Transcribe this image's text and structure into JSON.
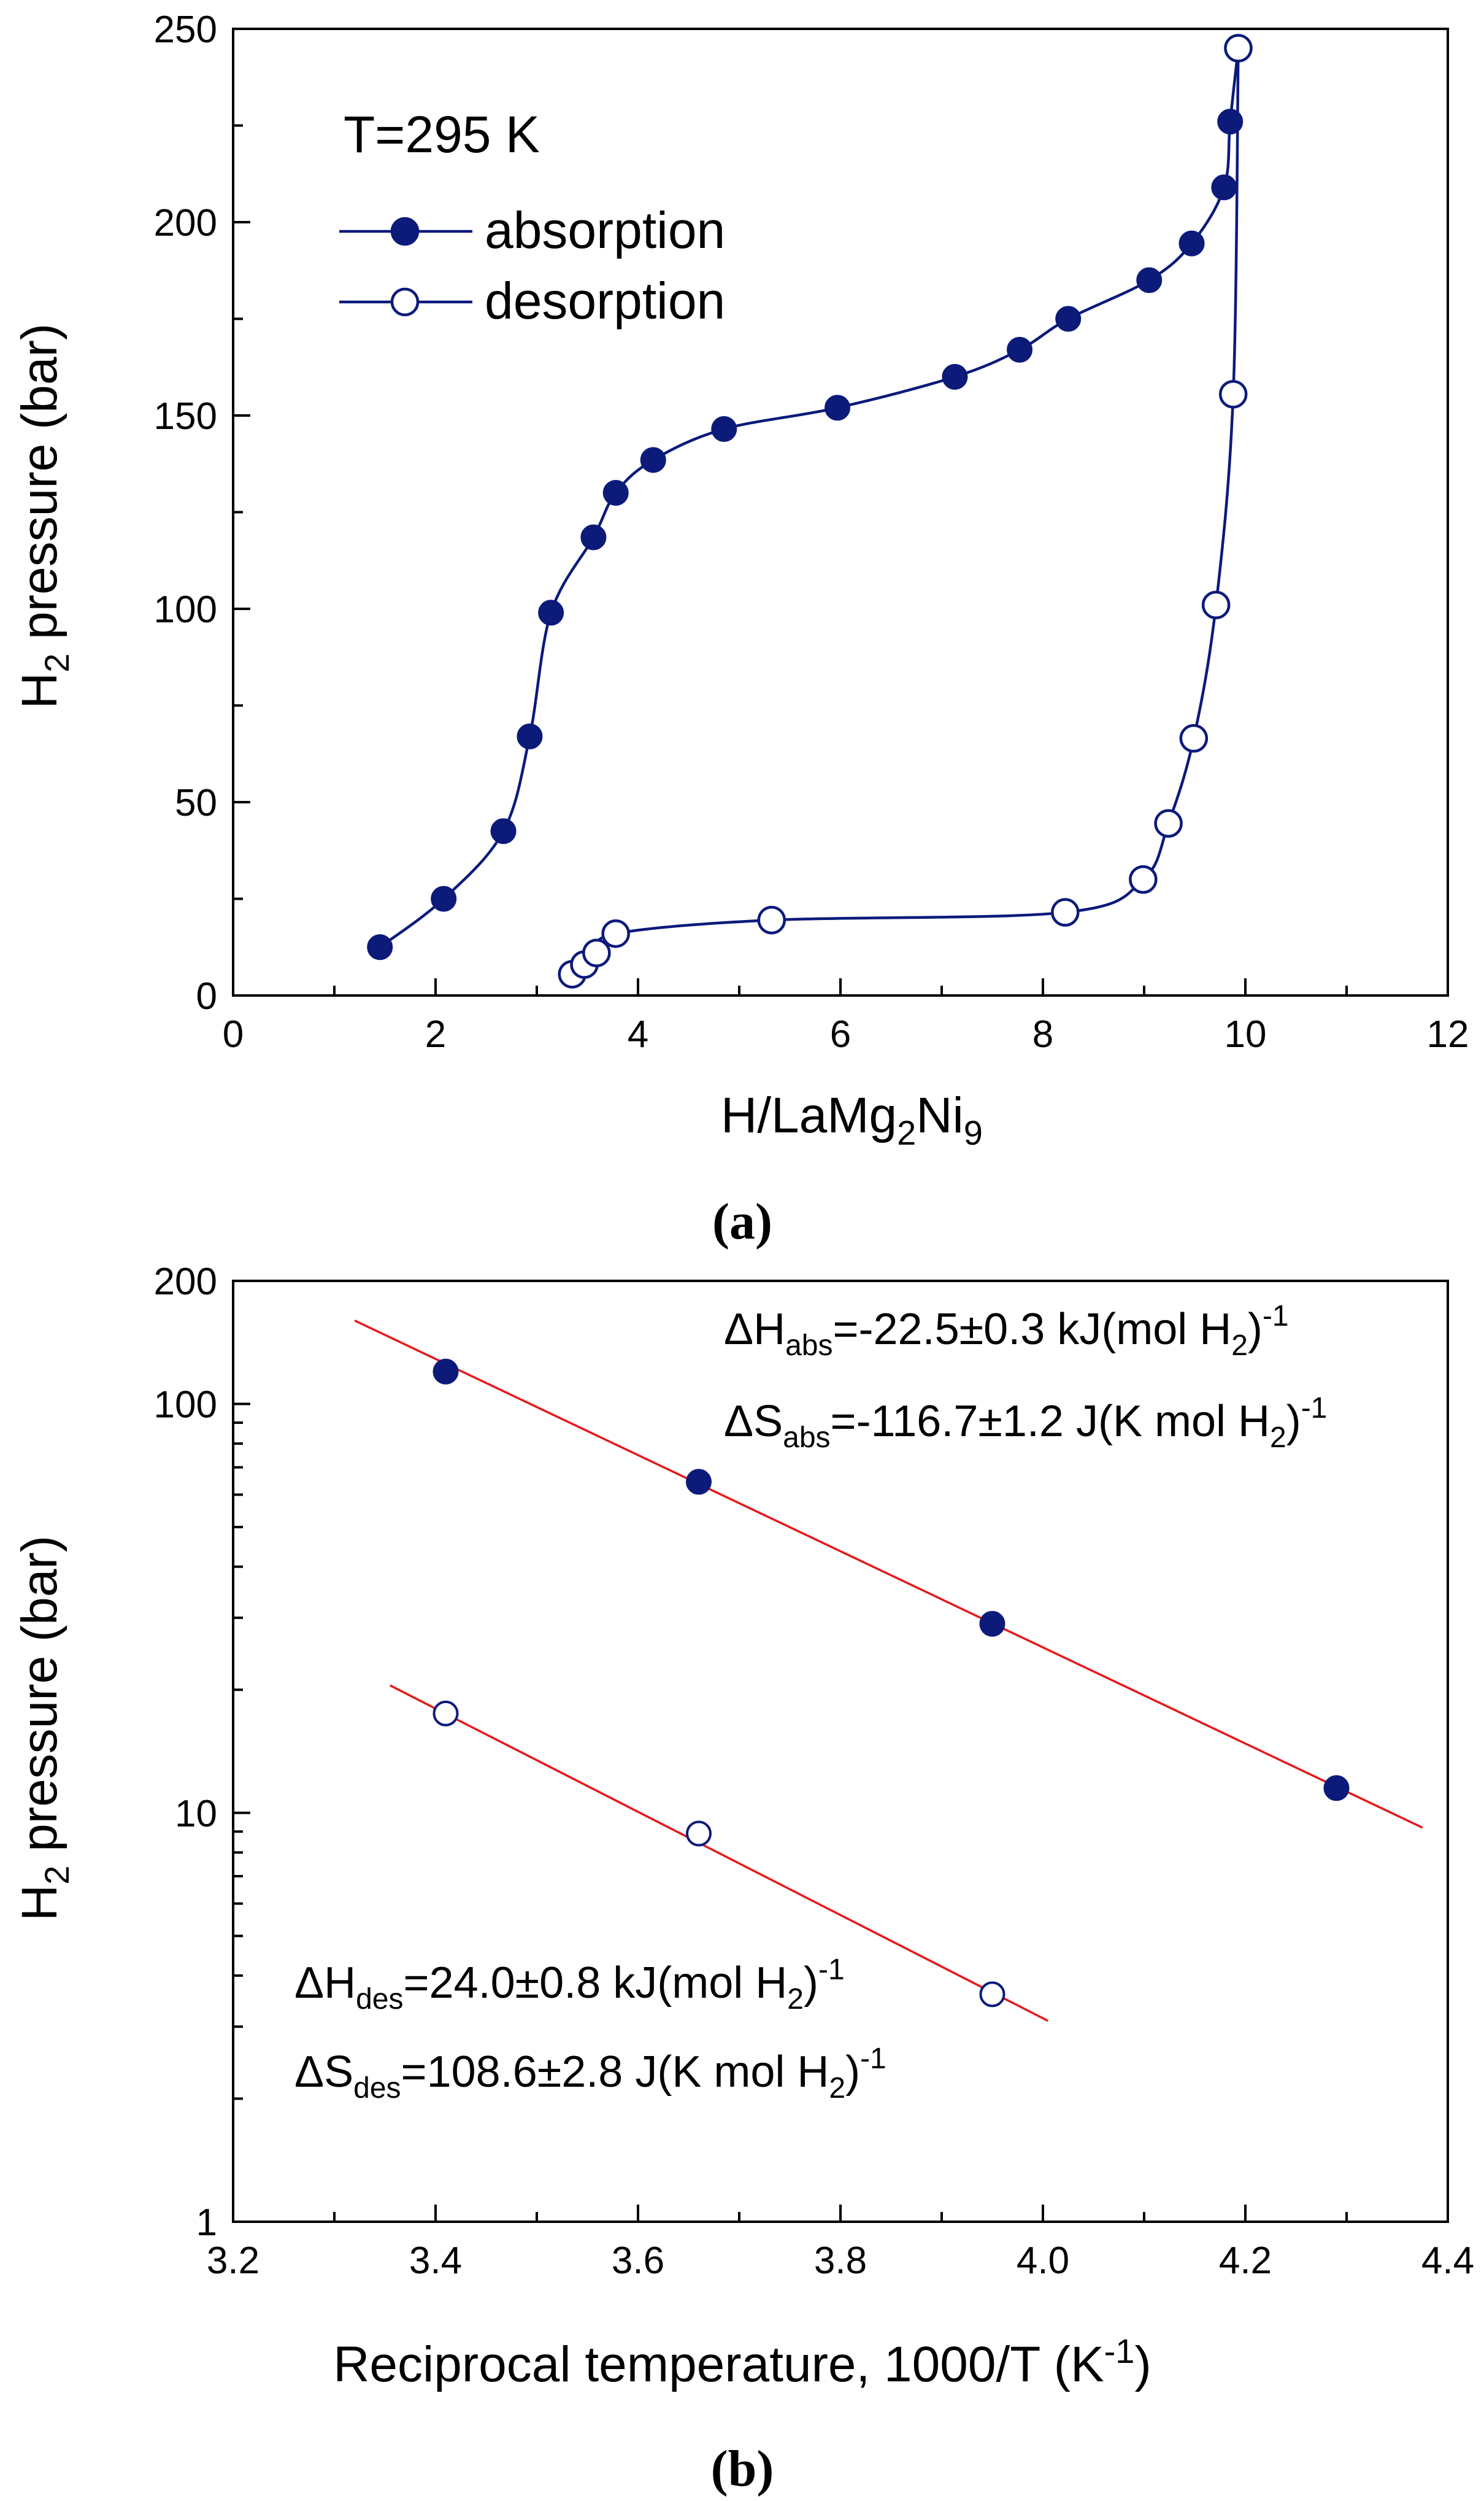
{
  "chart_data": [
    {
      "type": "line",
      "panel_label": "(a)",
      "annotation": "T=295 K",
      "xlabel": "H/LaMg2Ni9",
      "xlabel_parts": [
        "H/LaMg",
        "2",
        "Ni",
        "9"
      ],
      "ylabel": "H2 pressure (bar)",
      "ylabel_parts": [
        "H",
        "2",
        " pressure (bar)"
      ],
      "xlim": [
        0,
        12
      ],
      "ylim": [
        0,
        250
      ],
      "xticks": [
        0,
        2,
        4,
        6,
        8,
        10,
        12
      ],
      "yticks": [
        0,
        50,
        100,
        150,
        200,
        250
      ],
      "legend_position": "top-left",
      "series": [
        {
          "name": "absorption",
          "marker": "filled-circle",
          "color": "#0c1a7a",
          "x": [
            1.45,
            2.08,
            2.67,
            2.93,
            3.14,
            3.56,
            3.78,
            4.15,
            4.85,
            5.97,
            7.13,
            7.77,
            8.25,
            9.05,
            9.47,
            9.79,
            9.85,
            9.93
          ],
          "y": [
            12.5,
            25,
            42.5,
            67,
            99,
            118.5,
            130,
            138.5,
            146.5,
            152,
            160,
            167,
            175,
            185,
            194.5,
            209,
            226,
            245
          ]
        },
        {
          "name": "desorption",
          "marker": "open-circle",
          "color": "#0c1a7a",
          "x": [
            3.35,
            3.47,
            3.59,
            3.78,
            5.32,
            8.22,
            8.99,
            9.24,
            9.49,
            9.71,
            9.88,
            9.93
          ],
          "y": [
            5.5,
            8,
            11,
            16,
            19.5,
            21.5,
            30,
            44.5,
            66.5,
            101,
            155.5,
            245
          ]
        }
      ]
    },
    {
      "type": "scatter",
      "panel_label": "(b)",
      "xlabel": "Reciprocal temperature, 1000/T (K-1)",
      "xlabel_main": "Reciprocal temperature, 1000/T (K",
      "xlabel_sup": "-1",
      "xlabel_close": ")",
      "ylabel": "H2 pressure (bar)",
      "ylabel_parts": [
        "H",
        "2",
        " pressure (bar)"
      ],
      "xlim": [
        3.2,
        4.4
      ],
      "ylim": [
        1,
        200
      ],
      "yscale": "log",
      "xticks": [
        "3.2",
        "3.4",
        "3.6",
        "3.8",
        "4.0",
        "4.2",
        "4.4"
      ],
      "yticks": [
        1,
        10,
        100,
        200
      ],
      "series": [
        {
          "name": "absorption",
          "marker": "filled-circle",
          "x": [
            3.41,
            3.66,
            3.95,
            4.29
          ],
          "y": [
            120,
            64.5,
            29,
            11.5
          ],
          "fit_line": {
            "color": "#e8171b",
            "x": [
              3.32,
              4.375
            ],
            "y": [
              160,
              9.2
            ]
          }
        },
        {
          "name": "desorption",
          "marker": "open-circle",
          "x": [
            3.41,
            3.66,
            3.95
          ],
          "y": [
            17.5,
            8.9,
            3.6
          ],
          "fit_line": {
            "color": "#e8171b",
            "x": [
              3.355,
              4.005
            ],
            "y": [
              20.5,
              3.1
            ]
          }
        }
      ],
      "annotations": [
        {
          "label": "dh_abs",
          "prefix": "ΔH",
          "sub": "abs",
          "text": "=-22.5±0.3 kJ(mol H",
          "sub2": "2",
          "close": ")",
          "sup": "-1"
        },
        {
          "label": "ds_abs",
          "prefix": "ΔS",
          "sub": "abs",
          "text": "=-116.7±1.2 J(K mol H",
          "sub2": "2",
          "close": ")",
          "sup": "-1"
        },
        {
          "label": "dh_des",
          "prefix": "ΔH",
          "sub": "des",
          "text": "=24.0±0.8 kJ(mol H",
          "sub2": "2",
          "close": ")",
          "sup": "-1"
        },
        {
          "label": "ds_des",
          "prefix": "ΔS",
          "sub": "des",
          "text": "=108.6±2.8 J(K mol H",
          "sub2": "2",
          "close": ")",
          "sup": "-1"
        }
      ]
    }
  ]
}
